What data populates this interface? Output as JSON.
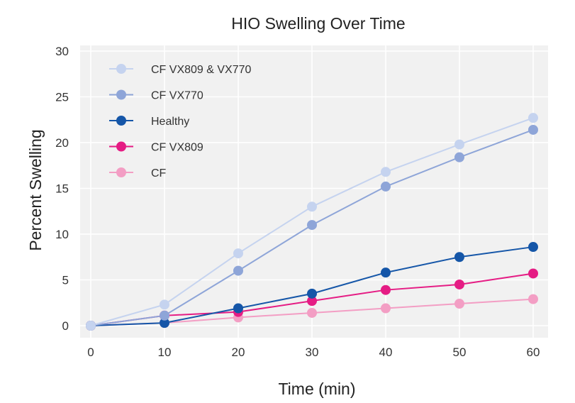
{
  "chart_data": {
    "type": "line",
    "title": "HIO Swelling Over Time",
    "xlabel": "Time (min)",
    "ylabel": "Percent Swelling",
    "x": [
      0,
      10,
      20,
      30,
      40,
      50,
      60
    ],
    "xticks": [
      "0",
      "10",
      "20",
      "30",
      "40",
      "50",
      "60"
    ],
    "yticks": [
      "0",
      "5",
      "10",
      "15",
      "20",
      "25",
      "30"
    ],
    "xlim": [
      0,
      60
    ],
    "ylim": [
      0,
      30
    ],
    "grid": true,
    "legend_position": "top-left",
    "background_color": "#f1f1f1",
    "series": [
      {
        "name": "CF VX809 & VX770",
        "color": "#c5d3ef",
        "values": [
          0,
          2.3,
          7.9,
          13,
          16.8,
          19.8,
          22.7
        ]
      },
      {
        "name": "CF VX770",
        "color": "#8ea5d8",
        "values": [
          0,
          1.1,
          6,
          11,
          15.2,
          18.4,
          21.4
        ]
      },
      {
        "name": "Healthy",
        "color": "#1556a8",
        "values": [
          0,
          0.3,
          1.9,
          3.5,
          5.8,
          7.5,
          8.6
        ]
      },
      {
        "name": "CF VX809",
        "color": "#e51c84",
        "values": [
          0,
          1.1,
          1.5,
          2.7,
          3.9,
          4.5,
          5.7
        ]
      },
      {
        "name": "CF",
        "color": "#f39ec4",
        "values": [
          0,
          0.3,
          0.9,
          1.4,
          1.9,
          2.4,
          2.9
        ]
      }
    ]
  }
}
